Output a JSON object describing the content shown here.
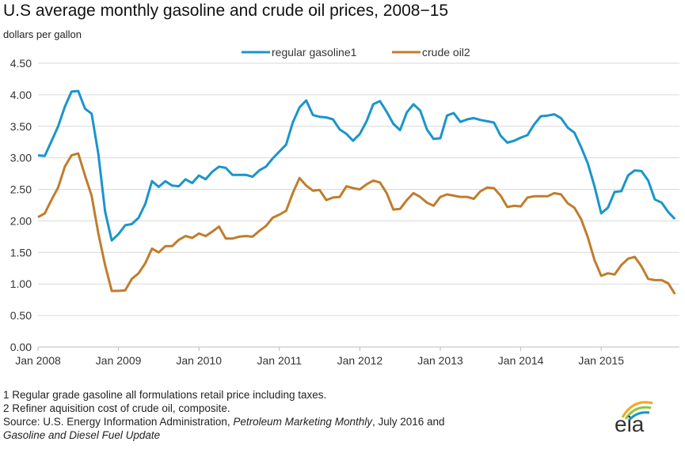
{
  "chart_data": {
    "type": "line",
    "title": "U.S average monthly gasoline and crude oil prices, 2008−15",
    "ylabel": "dollars per gallon",
    "ylim": [
      0,
      4.5
    ],
    "yticks": [
      "0.00",
      "0.50",
      "1.00",
      "1.50",
      "2.00",
      "2.50",
      "3.00",
      "3.50",
      "4.00",
      "4.50"
    ],
    "xticks": [
      "Jan 2008",
      "Jan 2009",
      "Jan 2010",
      "Jan 2011",
      "Jan 2012",
      "Jan 2013",
      "Jan 2014",
      "Jan 2015"
    ],
    "x_start": "Jan 2008",
    "x_end": "Dec 2015",
    "frequency": "monthly",
    "grid": "horizontal",
    "legend_position": "top",
    "series": [
      {
        "name": "regular gasoline1",
        "color": "#1a95cc",
        "values": [
          3.04,
          3.03,
          3.26,
          3.5,
          3.81,
          4.05,
          4.06,
          3.78,
          3.7,
          3.06,
          2.15,
          1.69,
          1.79,
          1.93,
          1.95,
          2.05,
          2.27,
          2.63,
          2.54,
          2.63,
          2.56,
          2.55,
          2.66,
          2.6,
          2.72,
          2.66,
          2.78,
          2.86,
          2.84,
          2.73,
          2.73,
          2.73,
          2.7,
          2.8,
          2.86,
          2.99,
          3.1,
          3.21,
          3.56,
          3.8,
          3.91,
          3.68,
          3.65,
          3.64,
          3.61,
          3.45,
          3.38,
          3.27,
          3.38,
          3.58,
          3.85,
          3.9,
          3.73,
          3.54,
          3.44,
          3.72,
          3.85,
          3.75,
          3.45,
          3.3,
          3.31,
          3.67,
          3.71,
          3.57,
          3.61,
          3.63,
          3.6,
          3.58,
          3.56,
          3.35,
          3.24,
          3.27,
          3.32,
          3.36,
          3.53,
          3.66,
          3.67,
          3.69,
          3.63,
          3.48,
          3.4,
          3.17,
          2.91,
          2.55,
          2.12,
          2.21,
          2.46,
          2.47,
          2.72,
          2.8,
          2.79,
          2.64,
          2.34,
          2.29,
          2.14,
          2.03
        ]
      },
      {
        "name": "crude oil2",
        "color": "#c07d2c",
        "values": [
          2.06,
          2.12,
          2.33,
          2.53,
          2.86,
          3.04,
          3.07,
          2.72,
          2.4,
          1.8,
          1.3,
          0.89,
          0.89,
          0.9,
          1.08,
          1.17,
          1.33,
          1.56,
          1.5,
          1.6,
          1.6,
          1.7,
          1.76,
          1.73,
          1.8,
          1.76,
          1.83,
          1.91,
          1.72,
          1.72,
          1.75,
          1.76,
          1.75,
          1.84,
          1.92,
          2.05,
          2.1,
          2.16,
          2.44,
          2.68,
          2.56,
          2.48,
          2.49,
          2.33,
          2.37,
          2.38,
          2.55,
          2.52,
          2.5,
          2.58,
          2.64,
          2.61,
          2.44,
          2.18,
          2.19,
          2.33,
          2.44,
          2.38,
          2.29,
          2.24,
          2.38,
          2.42,
          2.4,
          2.38,
          2.38,
          2.35,
          2.47,
          2.53,
          2.52,
          2.4,
          2.22,
          2.24,
          2.23,
          2.37,
          2.39,
          2.39,
          2.39,
          2.44,
          2.42,
          2.28,
          2.21,
          2.03,
          1.74,
          1.38,
          1.13,
          1.17,
          1.15,
          1.3,
          1.4,
          1.43,
          1.28,
          1.08,
          1.06,
          1.06,
          1.01,
          0.84
        ]
      }
    ]
  },
  "notes": {
    "note1": "1 Regular grade gasoline all formulations retail price including taxes.",
    "note2": "2 Refiner aquisition cost of crude oil, composite.",
    "source_prefix": "Source: U.S. Energy Information  Administration, ",
    "source_pub1": "Petroleum Marketing Monthly",
    "source_mid": ", July 2016 and",
    "source_pub2": "Gasoline and Diesel Fuel Update"
  },
  "logo": {
    "text": "eia",
    "colors": [
      "#f5a623",
      "#8cc63f",
      "#1a95cc"
    ]
  }
}
